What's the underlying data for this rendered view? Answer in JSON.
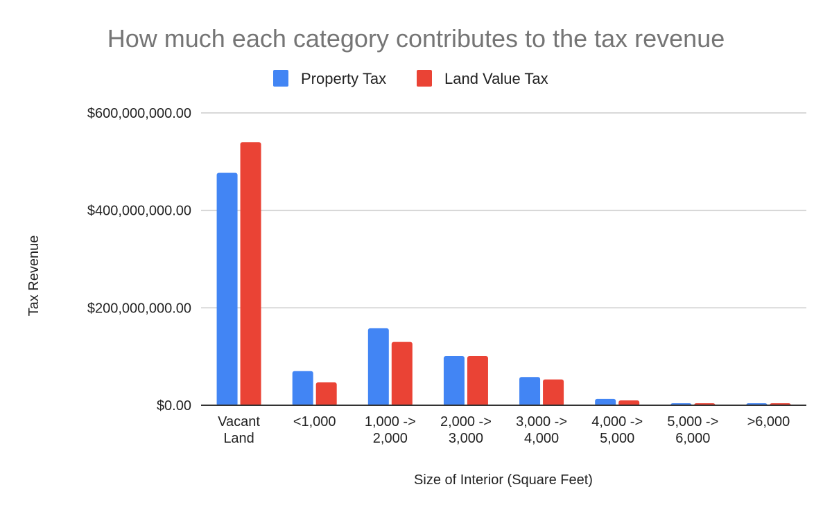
{
  "chart_data": {
    "type": "bar",
    "title": "How much each category contributes to the tax revenue",
    "xlabel": "Size of Interior (Square Feet)",
    "ylabel": "Tax Revenue",
    "ylim": [
      0,
      600000000
    ],
    "yticks": [
      0,
      200000000,
      400000000,
      600000000
    ],
    "ytick_labels": [
      "$0.00",
      "$200,000,000.00",
      "$400,000,000.00",
      "$600,000,000.00"
    ],
    "grid": true,
    "legend_position": "top",
    "categories": [
      [
        "Vacant",
        "Land"
      ],
      [
        "<1,000"
      ],
      [
        "1,000 ->",
        "2,000"
      ],
      [
        "2,000 ->",
        "3,000"
      ],
      [
        "3,000 ->",
        "4,000"
      ],
      [
        "4,000 ->",
        "5,000"
      ],
      [
        "5,000 ->",
        "6,000"
      ],
      [
        ">6,000"
      ]
    ],
    "series": [
      {
        "name": "Property Tax",
        "color": "#4285f4",
        "values": [
          477000000,
          70000000,
          158000000,
          101000000,
          58000000,
          13000000,
          4000000,
          4000000
        ]
      },
      {
        "name": "Land Value Tax",
        "color": "#ea4335",
        "values": [
          540000000,
          47000000,
          130000000,
          101000000,
          53000000,
          10000000,
          4000000,
          4000000
        ]
      }
    ]
  }
}
